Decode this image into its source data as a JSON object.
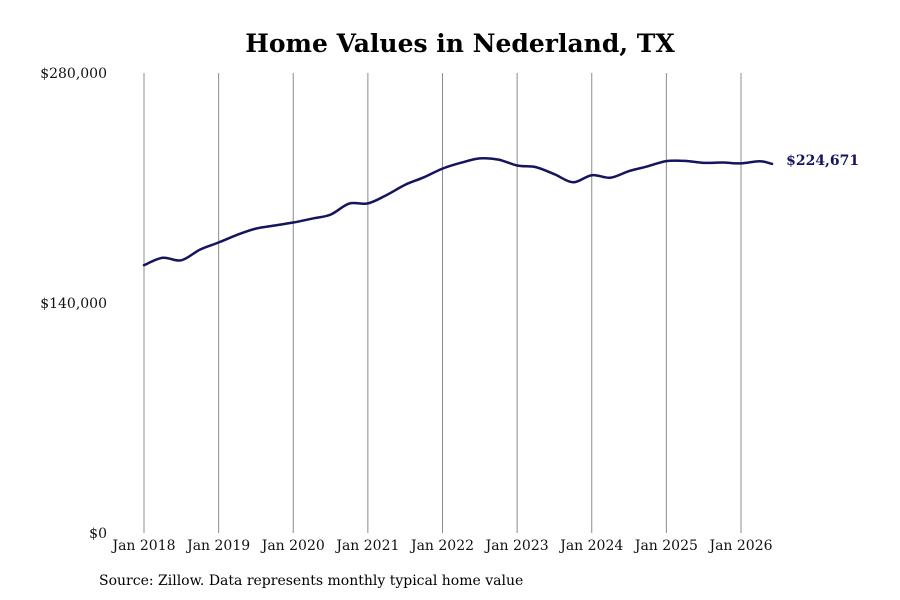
{
  "chart_data": {
    "type": "line",
    "title": "Home Values in Nederland, TX",
    "xlabel": "",
    "ylabel": "",
    "ylim": [
      0,
      280000
    ],
    "y_ticks": [
      "$0",
      "$140,000",
      "$280,000"
    ],
    "y_tick_values": [
      0,
      140000,
      280000
    ],
    "x_ticks": [
      "Jan 2018",
      "Jan 2019",
      "Jan 2020",
      "Jan 2021",
      "Jan 2022",
      "Jan 2023",
      "Jan 2024",
      "Jan 2025",
      "Jan 2026"
    ],
    "x_tick_values": [
      "2018-01",
      "2019-01",
      "2020-01",
      "2021-01",
      "2022-01",
      "2023-01",
      "2024-01",
      "2025-01",
      "2026-01"
    ],
    "grid": "vertical",
    "end_label": "$224,671",
    "series": [
      {
        "color": "#14145f",
        "x": [
          "2018-01",
          "2018-04",
          "2018-07",
          "2018-10",
          "2019-01",
          "2019-04",
          "2019-07",
          "2019-10",
          "2020-01",
          "2020-04",
          "2020-07",
          "2020-10",
          "2021-01",
          "2021-04",
          "2021-07",
          "2021-10",
          "2022-01",
          "2022-04",
          "2022-07",
          "2022-10",
          "2023-01",
          "2023-04",
          "2023-07",
          "2023-10",
          "2024-01",
          "2024-04",
          "2024-07",
          "2024-10",
          "2025-01",
          "2025-04",
          "2025-07",
          "2025-10",
          "2026-01",
          "2026-04",
          "2026-06"
        ],
        "values": [
          163000,
          167500,
          166000,
          172500,
          176800,
          181500,
          185300,
          187200,
          189000,
          191300,
          193800,
          200500,
          200600,
          205700,
          212000,
          216500,
          221800,
          225400,
          228000,
          227300,
          223700,
          222700,
          218400,
          213500,
          217800,
          216300,
          220300,
          223200,
          226400,
          226500,
          225300,
          225500,
          225000,
          226300,
          224671
        ]
      }
    ]
  },
  "source": "Source: Zillow. Data represents monthly typical home value"
}
